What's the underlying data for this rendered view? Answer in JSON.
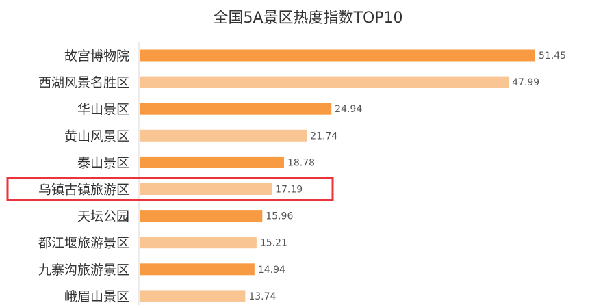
{
  "chart_data": {
    "type": "bar",
    "orientation": "horizontal",
    "title": "全国5A景区热度指数TOP10",
    "categories": [
      "故宫博物院",
      "西湖风景名胜区",
      "华山景区",
      "黄山风景区",
      "泰山景区",
      "乌镇古镇旅游区",
      "天坛公园",
      "都江堰旅游景区",
      "九寨沟旅游景区",
      "峨眉山景区"
    ],
    "values": [
      51.45,
      47.99,
      24.94,
      21.74,
      18.78,
      17.19,
      15.96,
      15.21,
      14.94,
      13.74
    ],
    "value_labels": [
      "51.45",
      "47.99",
      "24.94",
      "21.74",
      "18.78",
      "17.19",
      "15.96",
      "15.21",
      "14.94",
      "13.74"
    ],
    "xlim": [
      0,
      52
    ],
    "grid": false,
    "legend": "none",
    "highlighted_category": "乌镇古镇旅游区",
    "colors": {
      "bar_primary": "#F79A42",
      "bar_secondary": "#F9C593",
      "highlight_border": "#E8343A",
      "axis": "#D9D9D9"
    }
  }
}
